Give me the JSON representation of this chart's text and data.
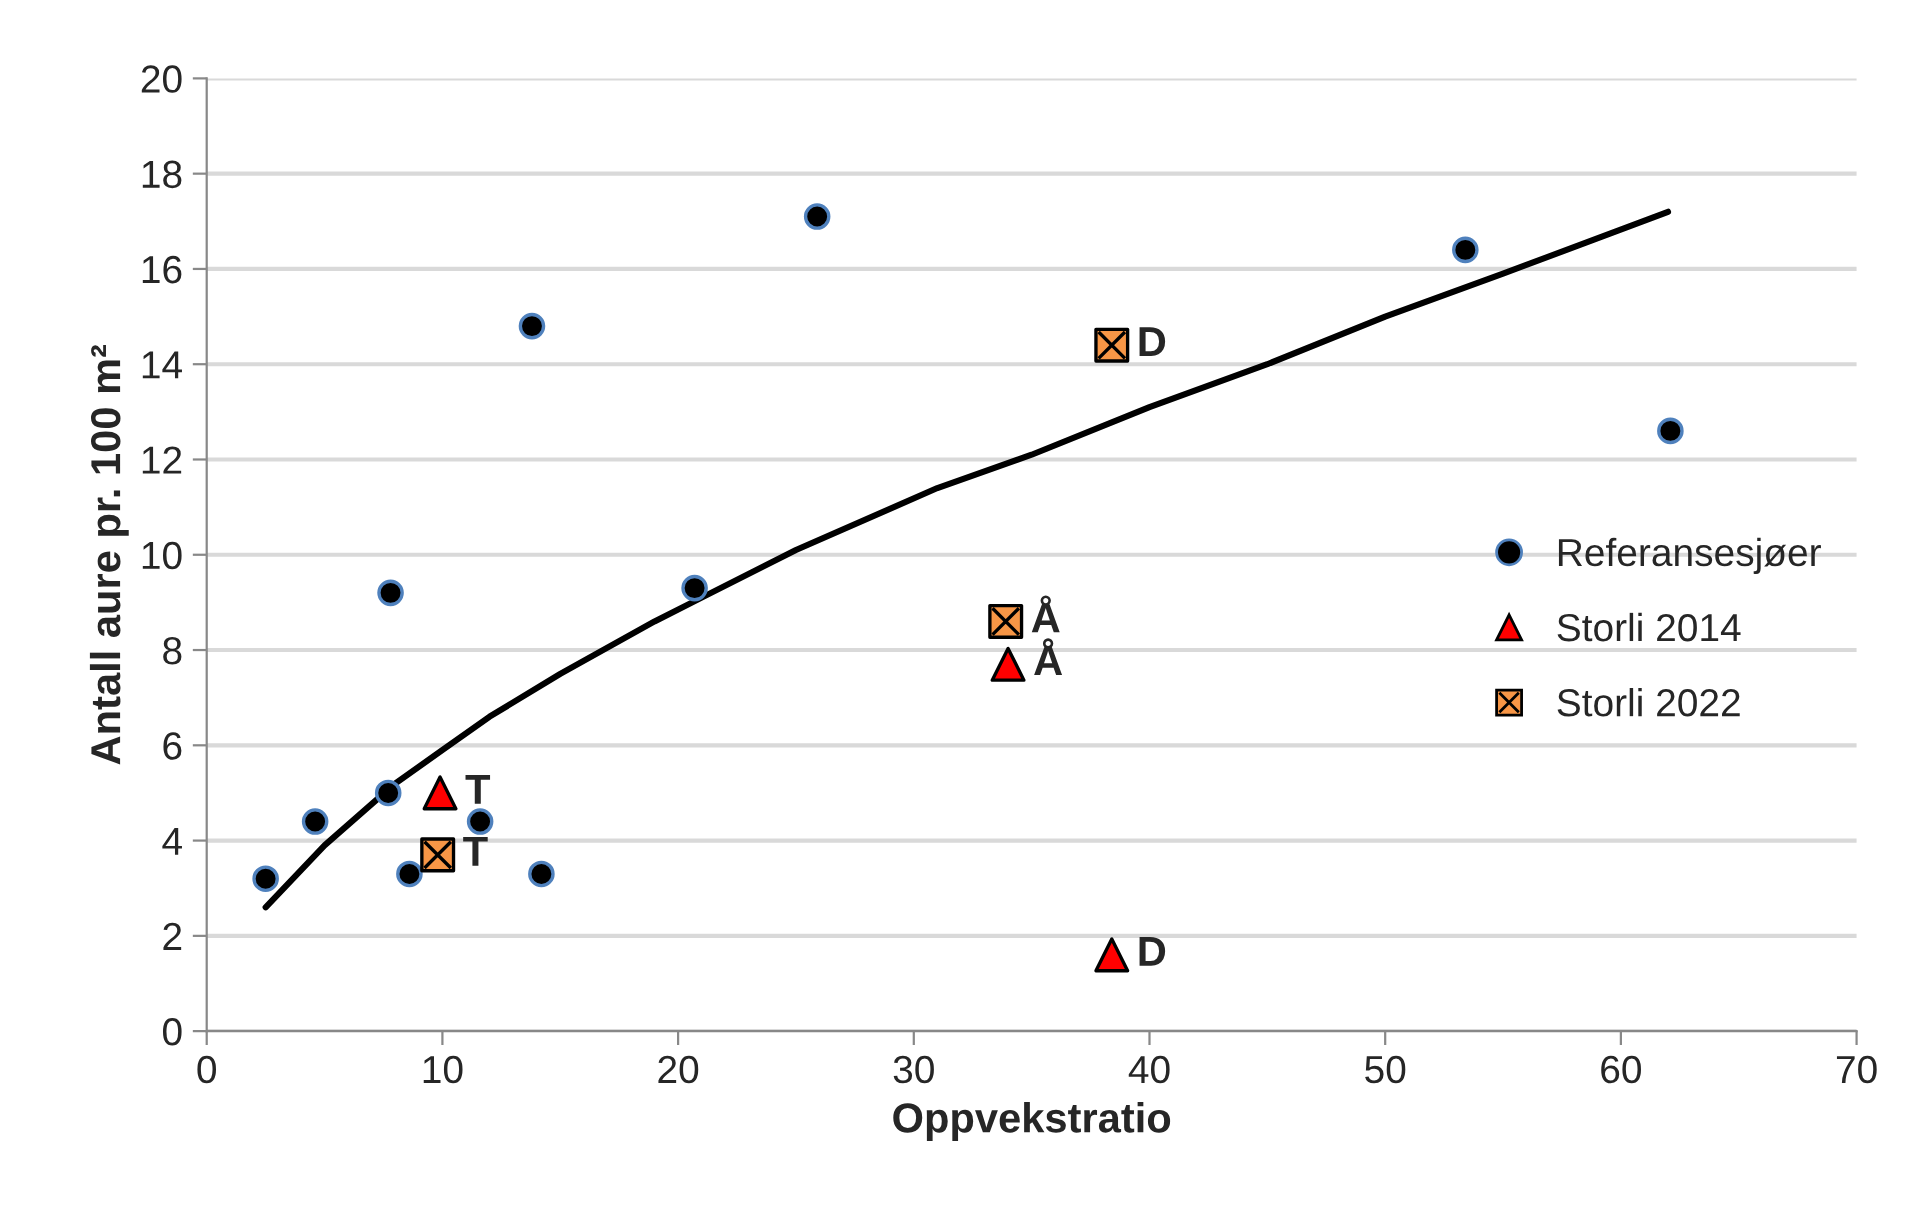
{
  "chart_data": {
    "type": "scatter",
    "xlabel": "Oppvekstratio",
    "ylabel": "Antall aure pr. 100 m²",
    "xlim": [
      0,
      70
    ],
    "xticks": [
      0,
      10,
      20,
      30,
      40,
      50,
      60,
      70
    ],
    "ylim": [
      0,
      20
    ],
    "yticks": [
      0,
      2,
      4,
      6,
      8,
      10,
      12,
      14,
      16,
      18,
      20
    ],
    "grid": "y",
    "legend": "right",
    "series": [
      {
        "name": "Referansesjøer",
        "marker": "circle",
        "color": "#000000",
        "x": [
          2.5,
          4.6,
          7.8,
          7.7,
          8.6,
          11.6,
          13.8,
          14.2,
          20.7,
          25.9,
          53.4,
          62.1
        ],
        "values": [
          3.2,
          4.4,
          9.2,
          5.0,
          3.3,
          4.4,
          14.8,
          3.3,
          9.3,
          17.1,
          16.4,
          12.6
        ]
      },
      {
        "name": "Storli 2014",
        "marker": "triangle",
        "color": "#ff0000",
        "x": [
          9.9,
          34.0,
          38.4
        ],
        "values": [
          5.0,
          7.7,
          1.6
        ]
      },
      {
        "name": "Storli 2022",
        "marker": "square",
        "color": "#f79646",
        "x": [
          9.8,
          33.9,
          38.4
        ],
        "values": [
          3.7,
          8.6,
          14.4
        ]
      },
      {
        "type": "line",
        "color": "#000000",
        "line_style": "solid",
        "marker": "none",
        "x": [
          2.5,
          5,
          8,
          10,
          12,
          15,
          19,
          21,
          25,
          31,
          35,
          40,
          45,
          50,
          55,
          62
        ],
        "values": [
          2.6,
          3.9,
          5.2,
          5.9,
          6.6,
          7.5,
          8.6,
          9.1,
          10.1,
          11.4,
          12.1,
          13.1,
          14.0,
          15.0,
          15.9,
          17.2
        ]
      }
    ],
    "annotations": [
      {
        "text": "T",
        "x": 9.9,
        "y": 5.0
      },
      {
        "text": "Å",
        "x": 34.0,
        "y": 7.7
      },
      {
        "text": "D",
        "x": 38.4,
        "y": 1.6
      },
      {
        "text": "T",
        "x": 9.8,
        "y": 3.7
      },
      {
        "text": "Å",
        "x": 33.9,
        "y": 8.6
      },
      {
        "text": "D",
        "x": 38.4,
        "y": 14.4
      }
    ]
  }
}
